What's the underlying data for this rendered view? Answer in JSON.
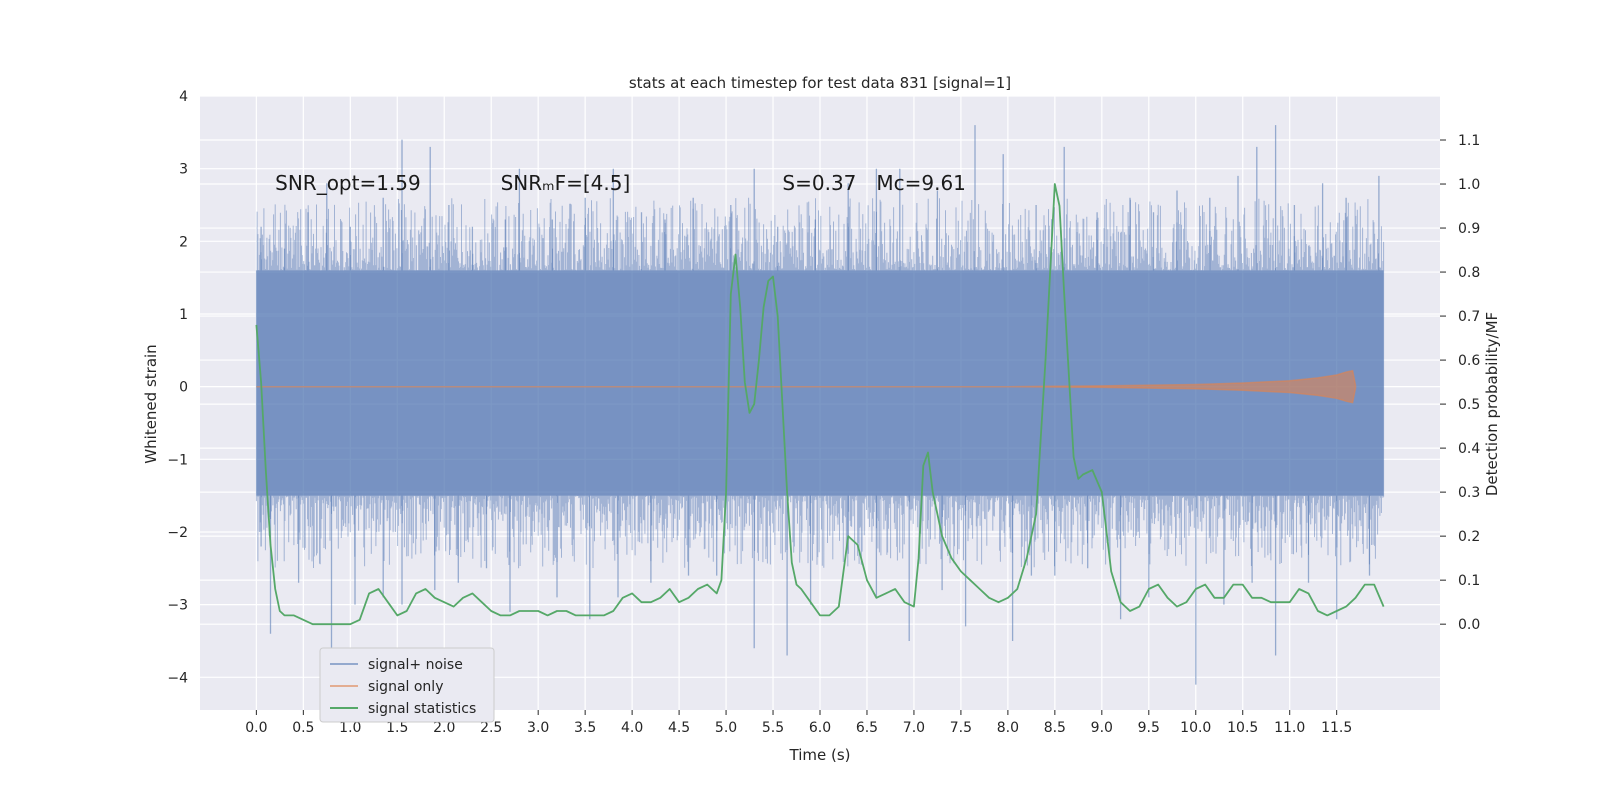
{
  "chart_data": {
    "type": "line",
    "title": "stats at each timestep for test data 831 [signal=1]",
    "xlabel": "Time (s)",
    "ylabel_left": "Whitened strain",
    "ylabel_right": "Detection probability/MF",
    "xlim": [
      -0.6,
      12.6
    ],
    "ylim_left": [
      -4.45,
      4.0
    ],
    "ylim_right": [
      -0.195,
      1.2
    ],
    "x_ticks": [
      0.0,
      0.5,
      1.0,
      1.5,
      2.0,
      2.5,
      3.0,
      3.5,
      4.0,
      4.5,
      5.0,
      5.5,
      6.0,
      6.5,
      7.0,
      7.5,
      8.0,
      8.5,
      9.0,
      9.5,
      10.0,
      10.5,
      11.0,
      11.5
    ],
    "x_tick_labels": [
      "0.0",
      "0.5",
      "1.0",
      "1.5",
      "2.0",
      "2.5",
      "3.0",
      "3.5",
      "4.0",
      "4.5",
      "5.0",
      "5.5",
      "6.0",
      "6.5",
      "7.0",
      "7.5",
      "8.0",
      "8.5",
      "9.0",
      "9.5",
      "10.0",
      "10.5",
      "11.0",
      "11.5"
    ],
    "y_left_ticks": [
      4,
      3,
      2,
      1,
      0,
      -1,
      -2,
      -3,
      -4
    ],
    "y_left_tick_labels": [
      "4",
      "3",
      "2",
      "1",
      "0",
      "−1",
      "−2",
      "−3",
      "−4"
    ],
    "y_right_ticks": [
      1.1,
      1.0,
      0.9,
      0.8,
      0.7,
      0.6,
      0.5,
      0.4,
      0.3,
      0.2,
      0.1,
      0.0
    ],
    "y_right_tick_labels": [
      "1.1",
      "1.0",
      "0.9",
      "0.8",
      "0.7",
      "0.6",
      "0.5",
      "0.4",
      "0.3",
      "0.2",
      "0.1",
      "0.0"
    ],
    "grid": true,
    "legend_position": "lower-left",
    "annotations": [
      {
        "text": "SNR_opt=1.59",
        "x": 0.2,
        "y": 2.8
      },
      {
        "text": "SNRₘF=[4.5]",
        "x": 2.6,
        "y": 2.8
      },
      {
        "text": "S=0.37",
        "x": 5.6,
        "y": 2.8
      },
      {
        "text": "Mᴄ=9.61",
        "x": 6.6,
        "y": 2.8
      }
    ],
    "series": [
      {
        "name": "signal+ noise",
        "color": "#4c72b0",
        "axis": "left",
        "description_band": {
          "x_start": 0.0,
          "x_end": 12.0,
          "core_low": -1.5,
          "core_high": 1.6
        },
        "upper_peaks": [
          [
            0.05,
            2.2
          ],
          [
            0.3,
            1.9
          ],
          [
            0.55,
            2.4
          ],
          [
            0.75,
            2.8
          ],
          [
            1.0,
            2.2
          ],
          [
            1.35,
            2.6
          ],
          [
            1.55,
            3.4
          ],
          [
            1.85,
            3.3
          ],
          [
            2.05,
            2.5
          ],
          [
            2.3,
            2.2
          ],
          [
            2.65,
            2.3
          ],
          [
            2.8,
            3.0
          ],
          [
            3.15,
            2.3
          ],
          [
            3.5,
            2.6
          ],
          [
            3.8,
            3.0
          ],
          [
            4.1,
            2.4
          ],
          [
            4.35,
            2.3
          ],
          [
            4.65,
            2.6
          ],
          [
            5.05,
            2.5
          ],
          [
            5.3,
            3.0
          ],
          [
            5.55,
            2.2
          ],
          [
            5.95,
            2.3
          ],
          [
            6.3,
            2.8
          ],
          [
            6.6,
            3.0
          ],
          [
            6.85,
            3.0
          ],
          [
            7.25,
            2.7
          ],
          [
            7.65,
            3.6
          ],
          [
            7.95,
            3.2
          ],
          [
            8.3,
            2.5
          ],
          [
            8.6,
            3.3
          ],
          [
            8.95,
            2.4
          ],
          [
            9.3,
            2.6
          ],
          [
            9.55,
            2.4
          ],
          [
            9.8,
            2.7
          ],
          [
            10.15,
            2.6
          ],
          [
            10.45,
            2.9
          ],
          [
            10.65,
            3.3
          ],
          [
            10.85,
            3.6
          ],
          [
            11.05,
            2.5
          ],
          [
            11.35,
            2.8
          ],
          [
            11.6,
            2.6
          ],
          [
            11.95,
            2.9
          ]
        ],
        "lower_peaks": [
          [
            0.05,
            -2.2
          ],
          [
            0.15,
            -3.4
          ],
          [
            0.45,
            -2.7
          ],
          [
            0.8,
            -3.7
          ],
          [
            1.05,
            -3.0
          ],
          [
            1.35,
            -2.9
          ],
          [
            1.55,
            -3.0
          ],
          [
            1.9,
            -2.8
          ],
          [
            2.15,
            -2.7
          ],
          [
            2.45,
            -2.5
          ],
          [
            2.7,
            -3.1
          ],
          [
            3.2,
            -2.9
          ],
          [
            3.55,
            -3.2
          ],
          [
            3.85,
            -2.9
          ],
          [
            4.2,
            -2.7
          ],
          [
            4.6,
            -2.6
          ],
          [
            4.9,
            -2.6
          ],
          [
            5.3,
            -3.6
          ],
          [
            5.65,
            -3.7
          ],
          [
            5.9,
            -3.0
          ],
          [
            6.3,
            -2.3
          ],
          [
            6.6,
            -2.9
          ],
          [
            6.95,
            -3.5
          ],
          [
            7.3,
            -2.8
          ],
          [
            7.55,
            -3.3
          ],
          [
            8.05,
            -3.5
          ],
          [
            8.25,
            -2.6
          ],
          [
            8.5,
            -2.6
          ],
          [
            8.85,
            -2.5
          ],
          [
            9.2,
            -3.2
          ],
          [
            9.5,
            -2.9
          ],
          [
            10.0,
            -4.1
          ],
          [
            10.3,
            -3.0
          ],
          [
            10.6,
            -2.7
          ],
          [
            10.85,
            -3.7
          ],
          [
            11.2,
            -2.7
          ],
          [
            11.5,
            -3.2
          ],
          [
            11.85,
            -2.6
          ]
        ]
      },
      {
        "name": "signal only",
        "color": "#dd8452",
        "axis": "left",
        "envelope": [
          [
            0.0,
            0.0
          ],
          [
            8.0,
            0.0
          ],
          [
            9.0,
            0.01
          ],
          [
            10.0,
            0.03
          ],
          [
            10.5,
            0.05
          ],
          [
            11.0,
            0.08
          ],
          [
            11.3,
            0.12
          ],
          [
            11.5,
            0.16
          ],
          [
            11.6,
            0.2
          ],
          [
            11.67,
            0.22
          ],
          [
            11.7,
            0.02
          ]
        ]
      },
      {
        "name": "signal statistics",
        "color": "#55a868",
        "axis": "right",
        "points": [
          [
            0.0,
            0.68
          ],
          [
            0.05,
            0.55
          ],
          [
            0.1,
            0.35
          ],
          [
            0.15,
            0.18
          ],
          [
            0.2,
            0.08
          ],
          [
            0.25,
            0.03
          ],
          [
            0.3,
            0.02
          ],
          [
            0.4,
            0.02
          ],
          [
            0.5,
            0.01
          ],
          [
            0.6,
            0.0
          ],
          [
            0.7,
            0.0
          ],
          [
            0.8,
            0.0
          ],
          [
            0.9,
            0.0
          ],
          [
            1.0,
            0.0
          ],
          [
            1.1,
            0.01
          ],
          [
            1.2,
            0.07
          ],
          [
            1.3,
            0.08
          ],
          [
            1.4,
            0.05
          ],
          [
            1.5,
            0.02
          ],
          [
            1.6,
            0.03
          ],
          [
            1.7,
            0.07
          ],
          [
            1.8,
            0.08
          ],
          [
            1.9,
            0.06
          ],
          [
            2.0,
            0.05
          ],
          [
            2.1,
            0.04
          ],
          [
            2.2,
            0.06
          ],
          [
            2.3,
            0.07
          ],
          [
            2.4,
            0.05
          ],
          [
            2.5,
            0.03
          ],
          [
            2.6,
            0.02
          ],
          [
            2.7,
            0.02
          ],
          [
            2.8,
            0.03
          ],
          [
            2.9,
            0.03
          ],
          [
            3.0,
            0.03
          ],
          [
            3.1,
            0.02
          ],
          [
            3.2,
            0.03
          ],
          [
            3.3,
            0.03
          ],
          [
            3.4,
            0.02
          ],
          [
            3.5,
            0.02
          ],
          [
            3.6,
            0.02
          ],
          [
            3.7,
            0.02
          ],
          [
            3.8,
            0.03
          ],
          [
            3.9,
            0.06
          ],
          [
            4.0,
            0.07
          ],
          [
            4.1,
            0.05
          ],
          [
            4.2,
            0.05
          ],
          [
            4.3,
            0.06
          ],
          [
            4.4,
            0.08
          ],
          [
            4.5,
            0.05
          ],
          [
            4.6,
            0.06
          ],
          [
            4.7,
            0.08
          ],
          [
            4.8,
            0.09
          ],
          [
            4.9,
            0.07
          ],
          [
            4.95,
            0.1
          ],
          [
            5.0,
            0.3
          ],
          [
            5.05,
            0.75
          ],
          [
            5.1,
            0.84
          ],
          [
            5.15,
            0.72
          ],
          [
            5.2,
            0.55
          ],
          [
            5.25,
            0.48
          ],
          [
            5.3,
            0.5
          ],
          [
            5.35,
            0.6
          ],
          [
            5.4,
            0.72
          ],
          [
            5.45,
            0.78
          ],
          [
            5.5,
            0.79
          ],
          [
            5.55,
            0.7
          ],
          [
            5.6,
            0.5
          ],
          [
            5.65,
            0.3
          ],
          [
            5.7,
            0.14
          ],
          [
            5.75,
            0.09
          ],
          [
            5.8,
            0.08
          ],
          [
            5.9,
            0.05
          ],
          [
            6.0,
            0.02
          ],
          [
            6.1,
            0.02
          ],
          [
            6.2,
            0.04
          ],
          [
            6.3,
            0.2
          ],
          [
            6.4,
            0.18
          ],
          [
            6.5,
            0.1
          ],
          [
            6.6,
            0.06
          ],
          [
            6.7,
            0.07
          ],
          [
            6.8,
            0.08
          ],
          [
            6.9,
            0.05
          ],
          [
            7.0,
            0.04
          ],
          [
            7.05,
            0.15
          ],
          [
            7.1,
            0.36
          ],
          [
            7.15,
            0.39
          ],
          [
            7.2,
            0.3
          ],
          [
            7.3,
            0.2
          ],
          [
            7.4,
            0.15
          ],
          [
            7.5,
            0.12
          ],
          [
            7.6,
            0.1
          ],
          [
            7.7,
            0.08
          ],
          [
            7.8,
            0.06
          ],
          [
            7.9,
            0.05
          ],
          [
            8.0,
            0.06
          ],
          [
            8.1,
            0.08
          ],
          [
            8.2,
            0.15
          ],
          [
            8.3,
            0.25
          ],
          [
            8.4,
            0.6
          ],
          [
            8.5,
            1.0
          ],
          [
            8.55,
            0.95
          ],
          [
            8.6,
            0.75
          ],
          [
            8.7,
            0.38
          ],
          [
            8.75,
            0.33
          ],
          [
            8.8,
            0.34
          ],
          [
            8.9,
            0.35
          ],
          [
            9.0,
            0.3
          ],
          [
            9.1,
            0.12
          ],
          [
            9.2,
            0.05
          ],
          [
            9.3,
            0.03
          ],
          [
            9.4,
            0.04
          ],
          [
            9.5,
            0.08
          ],
          [
            9.6,
            0.09
          ],
          [
            9.7,
            0.06
          ],
          [
            9.8,
            0.04
          ],
          [
            9.9,
            0.05
          ],
          [
            10.0,
            0.08
          ],
          [
            10.1,
            0.09
          ],
          [
            10.2,
            0.06
          ],
          [
            10.3,
            0.06
          ],
          [
            10.4,
            0.09
          ],
          [
            10.5,
            0.09
          ],
          [
            10.6,
            0.06
          ],
          [
            10.7,
            0.06
          ],
          [
            10.8,
            0.05
          ],
          [
            10.9,
            0.05
          ],
          [
            11.0,
            0.05
          ],
          [
            11.1,
            0.08
          ],
          [
            11.2,
            0.07
          ],
          [
            11.3,
            0.03
          ],
          [
            11.4,
            0.02
          ],
          [
            11.5,
            0.03
          ],
          [
            11.6,
            0.04
          ],
          [
            11.7,
            0.06
          ],
          [
            11.8,
            0.09
          ],
          [
            11.9,
            0.09
          ],
          [
            12.0,
            0.04
          ]
        ]
      }
    ]
  }
}
